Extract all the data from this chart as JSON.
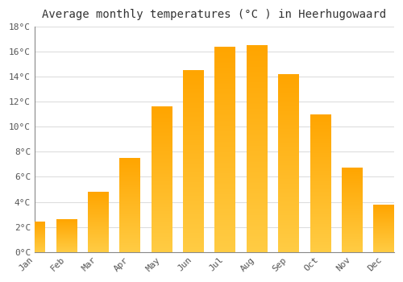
{
  "title": "Average monthly temperatures (°C ) in Heerhugowaard",
  "months": [
    "Jan",
    "Feb",
    "Mar",
    "Apr",
    "May",
    "Jun",
    "Jul",
    "Aug",
    "Sep",
    "Oct",
    "Nov",
    "Dec"
  ],
  "values": [
    2.4,
    2.6,
    4.8,
    7.5,
    11.6,
    14.5,
    16.4,
    16.5,
    14.2,
    11.0,
    6.7,
    3.8
  ],
  "bar_color_light": "#FFCC44",
  "bar_color_dark": "#FFA500",
  "ylim": [
    0,
    18
  ],
  "yticks": [
    0,
    2,
    4,
    6,
    8,
    10,
    12,
    14,
    16,
    18
  ],
  "ytick_labels": [
    "0°C",
    "2°C",
    "4°C",
    "6°C",
    "8°C",
    "10°C",
    "12°C",
    "14°C",
    "16°C",
    "18°C"
  ],
  "background_color": "#FFFFFF",
  "grid_color": "#DDDDDD",
  "title_fontsize": 10,
  "tick_fontsize": 8,
  "bar_width": 0.65
}
